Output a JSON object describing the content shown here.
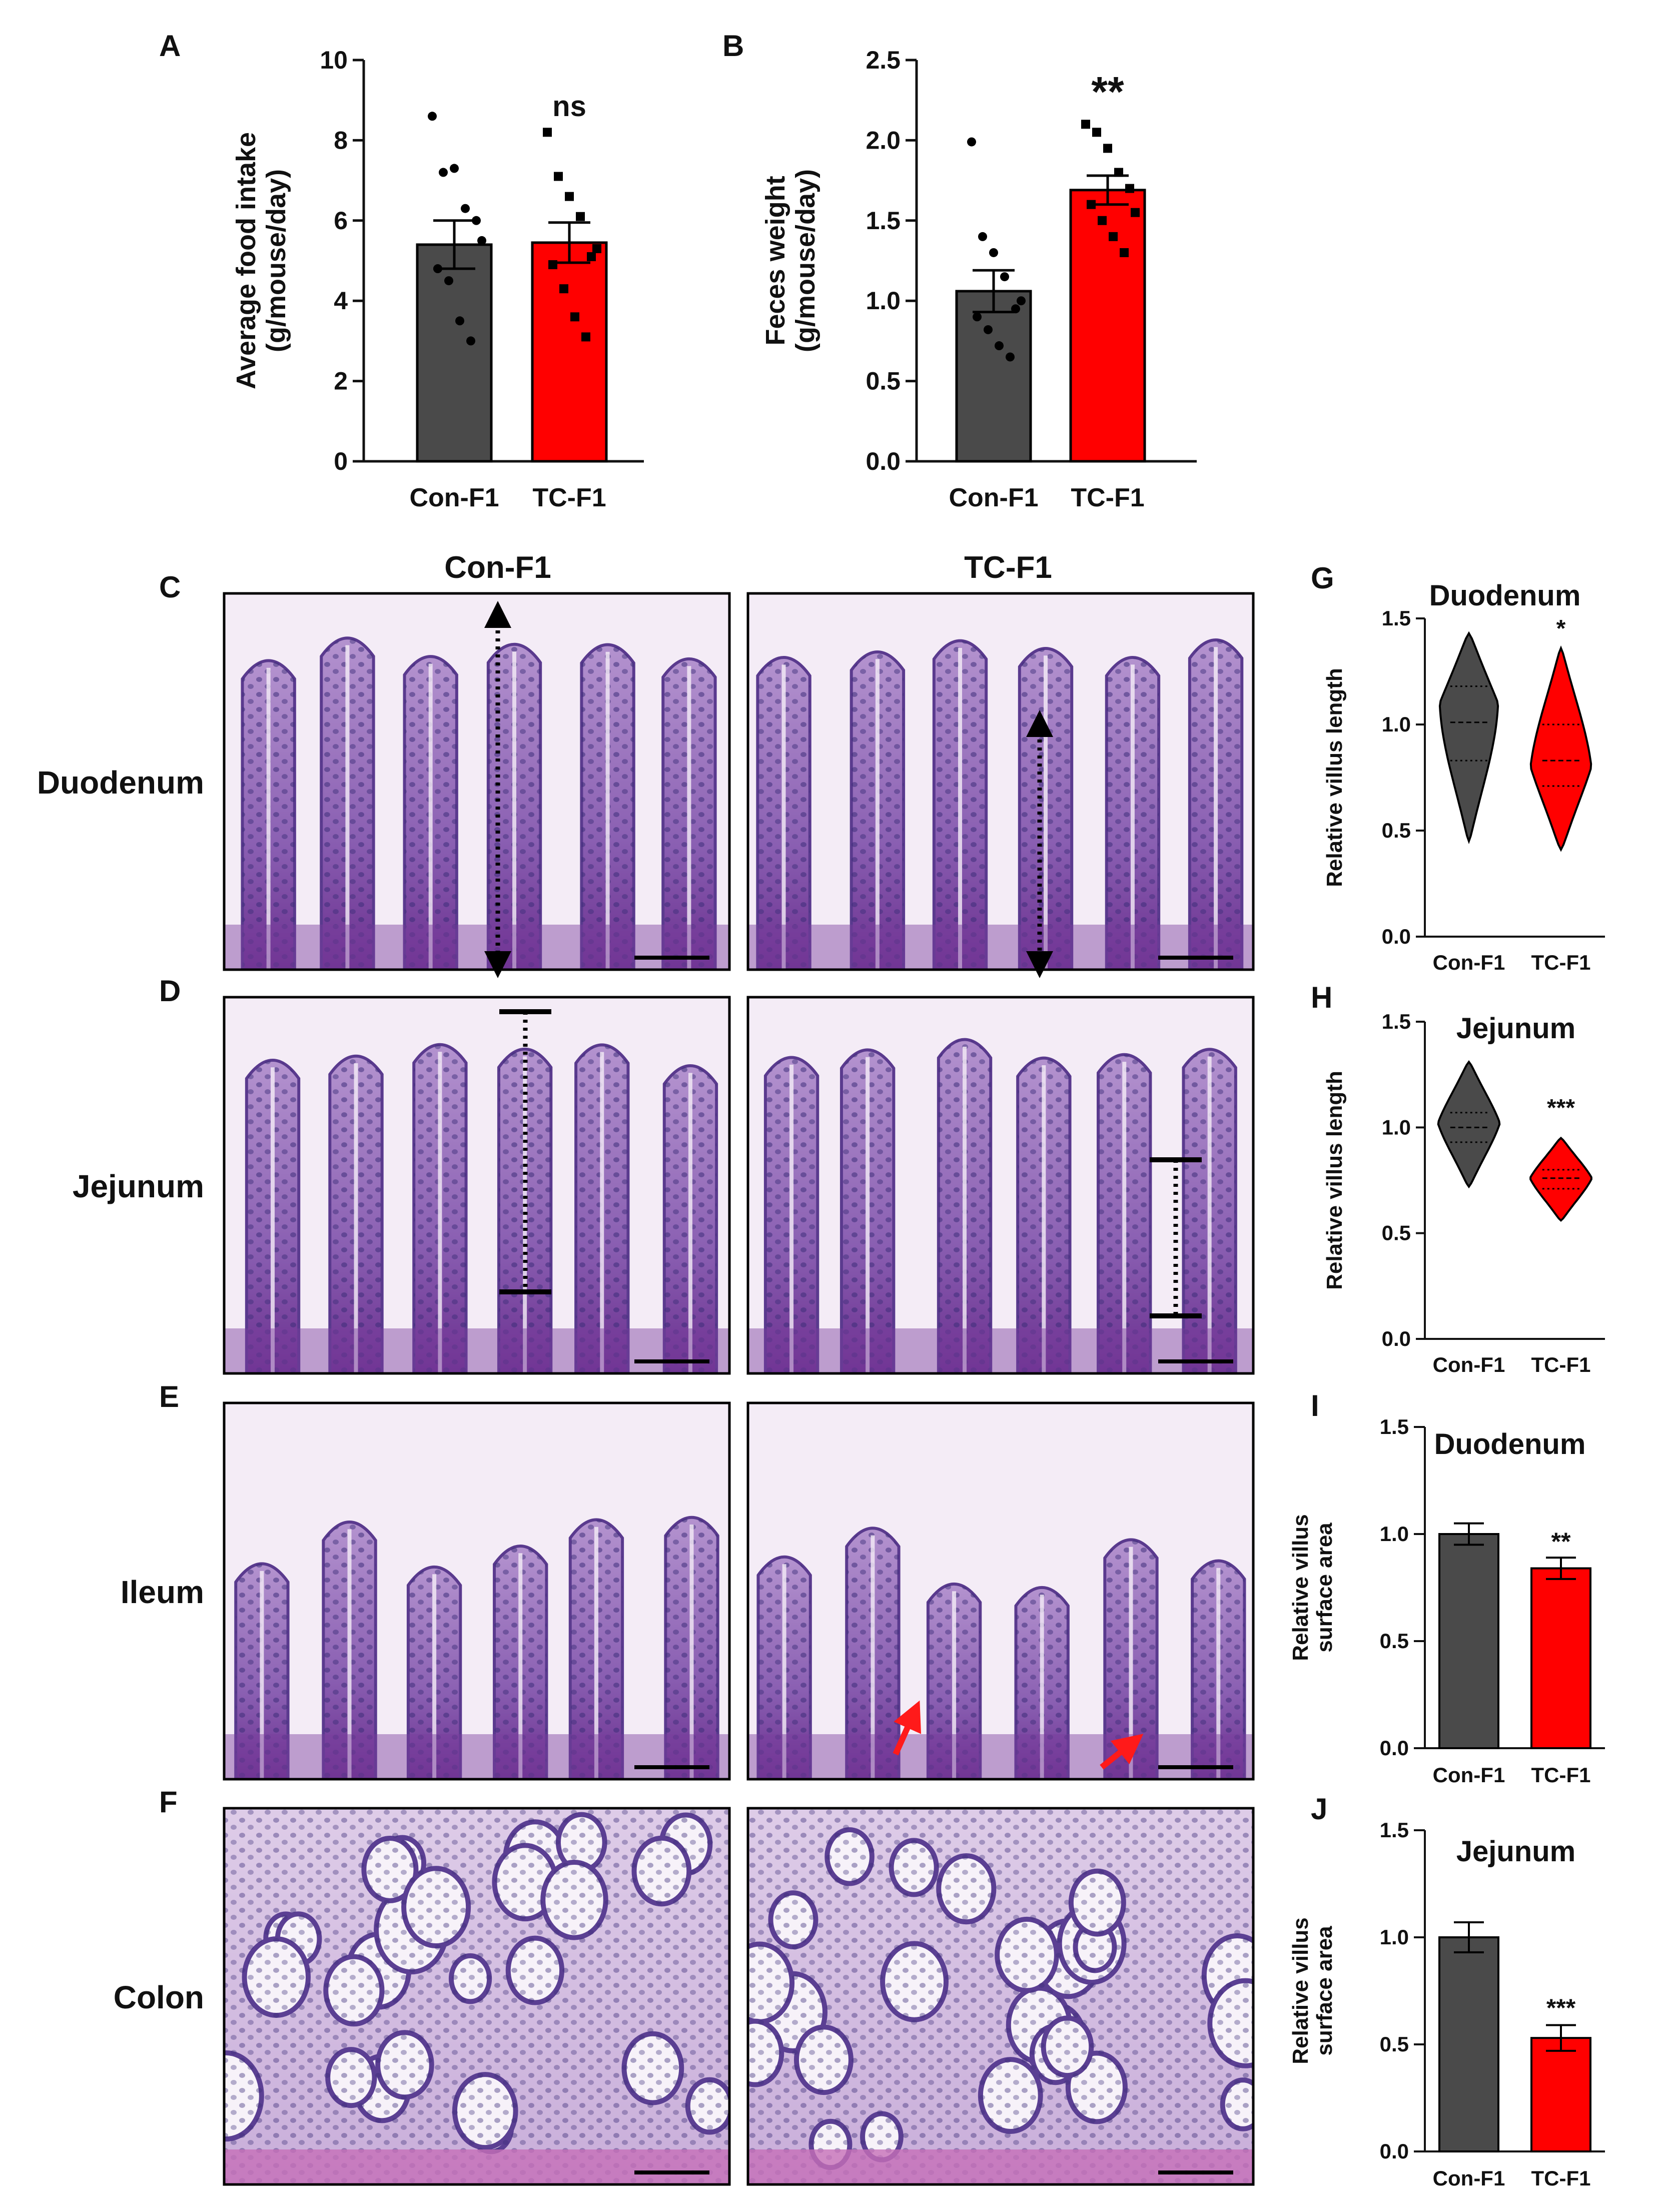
{
  "figure": {
    "colors": {
      "con": "#4a4a4a",
      "tc": "#ff0000",
      "axis": "#111111"
    },
    "micrograph": {
      "column_headers": [
        "Con-F1",
        "TC-F1"
      ],
      "rows": [
        {
          "letter": "C",
          "label": "Duodenum",
          "kind": "villus-duo"
        },
        {
          "letter": "D",
          "label": "Jejunum",
          "kind": "villus-jej"
        },
        {
          "letter": "E",
          "label": "Ileum",
          "kind": "villus-ile"
        },
        {
          "letter": "F",
          "label": "Colon",
          "kind": "crypt"
        }
      ]
    }
  },
  "chart_data": [
    {
      "id": "A",
      "type": "bar",
      "panel_letter": "A",
      "ylabel_line1": "Average food intake",
      "ylabel_line2": "(g/mouse/day)",
      "ylim": [
        0,
        10
      ],
      "yticks": [
        "0",
        "2",
        "4",
        "6",
        "8",
        "10"
      ],
      "categories": [
        "Con-F1",
        "TC-F1"
      ],
      "values": [
        5.4,
        5.45
      ],
      "errors": [
        0.6,
        0.5
      ],
      "points": [
        [
          8.6,
          7.2,
          7.3,
          6.3,
          6.0,
          4.8,
          4.5,
          3.5,
          3.0,
          5.5
        ],
        [
          8.2,
          7.1,
          6.6,
          6.1,
          5.1,
          4.9,
          4.3,
          3.6,
          3.1,
          5.3
        ]
      ],
      "significance": "ns"
    },
    {
      "id": "B",
      "type": "bar",
      "panel_letter": "B",
      "ylabel_line1": "Feces weight",
      "ylabel_line2": "(g/mouse/day)",
      "ylim": [
        0,
        2.5
      ],
      "yticks": [
        "0.0",
        "0.5",
        "1.0",
        "1.5",
        "2.0",
        "2.5"
      ],
      "categories": [
        "Con-F1",
        "TC-F1"
      ],
      "values": [
        1.06,
        1.69
      ],
      "errors": [
        0.13,
        0.09
      ],
      "points": [
        [
          1.99,
          1.4,
          1.3,
          1.15,
          0.95,
          0.9,
          0.82,
          0.72,
          0.65,
          1.0
        ],
        [
          2.1,
          2.05,
          1.95,
          1.8,
          1.7,
          1.6,
          1.5,
          1.4,
          1.3,
          1.55
        ]
      ],
      "significance": "**"
    },
    {
      "id": "G",
      "type": "violin",
      "panel_letter": "G",
      "title": "Duodenum",
      "ylabel": "Relative villus length",
      "ylim": [
        0,
        1.5
      ],
      "yticks": [
        "0.0",
        "0.5",
        "1.0",
        "1.5"
      ],
      "categories": [
        "Con-F1",
        "TC-F1"
      ],
      "violins": [
        {
          "min": 0.45,
          "max": 1.43,
          "q1": 0.83,
          "median": 1.01,
          "q3": 1.18,
          "mode": 1.1
        },
        {
          "min": 0.41,
          "max": 1.36,
          "q1": 0.71,
          "median": 0.83,
          "q3": 1.0,
          "mode": 0.8
        }
      ],
      "significance": "*"
    },
    {
      "id": "H",
      "type": "violin",
      "panel_letter": "H",
      "title": "Jejunum",
      "ylabel": "Relative villus length",
      "ylim": [
        0,
        1.5
      ],
      "yticks": [
        "0.0",
        "0.5",
        "1.0",
        "1.5"
      ],
      "categories": [
        "Con-F1",
        "TC-F1"
      ],
      "violins": [
        {
          "min": 0.72,
          "max": 1.31,
          "q1": 0.93,
          "median": 1.0,
          "q3": 1.07,
          "mode": 1.02
        },
        {
          "min": 0.56,
          "max": 0.95,
          "q1": 0.71,
          "median": 0.76,
          "q3": 0.8,
          "mode": 0.76
        }
      ],
      "significance": "***"
    },
    {
      "id": "I",
      "type": "bar",
      "panel_letter": "I",
      "title": "Duodenum",
      "ylabel_line1": "Relative villus",
      "ylabel_line2": "surface area",
      "ylim": [
        0,
        1.5
      ],
      "yticks": [
        "0.0",
        "0.5",
        "1.0",
        "1.5"
      ],
      "categories": [
        "Con-F1",
        "TC-F1"
      ],
      "values": [
        1.0,
        0.84
      ],
      "errors": [
        0.05,
        0.05
      ],
      "significance": "**"
    },
    {
      "id": "J",
      "type": "bar",
      "panel_letter": "J",
      "title": "Jejunum",
      "ylabel_line1": "Relative  villus",
      "ylabel_line2": "surface area",
      "ylim": [
        0,
        1.5
      ],
      "yticks": [
        "0.0",
        "0.5",
        "1.0",
        "1.5"
      ],
      "categories": [
        "Con-F1",
        "TC-F1"
      ],
      "values": [
        1.0,
        0.53
      ],
      "errors": [
        0.07,
        0.06
      ],
      "significance": "***"
    }
  ]
}
